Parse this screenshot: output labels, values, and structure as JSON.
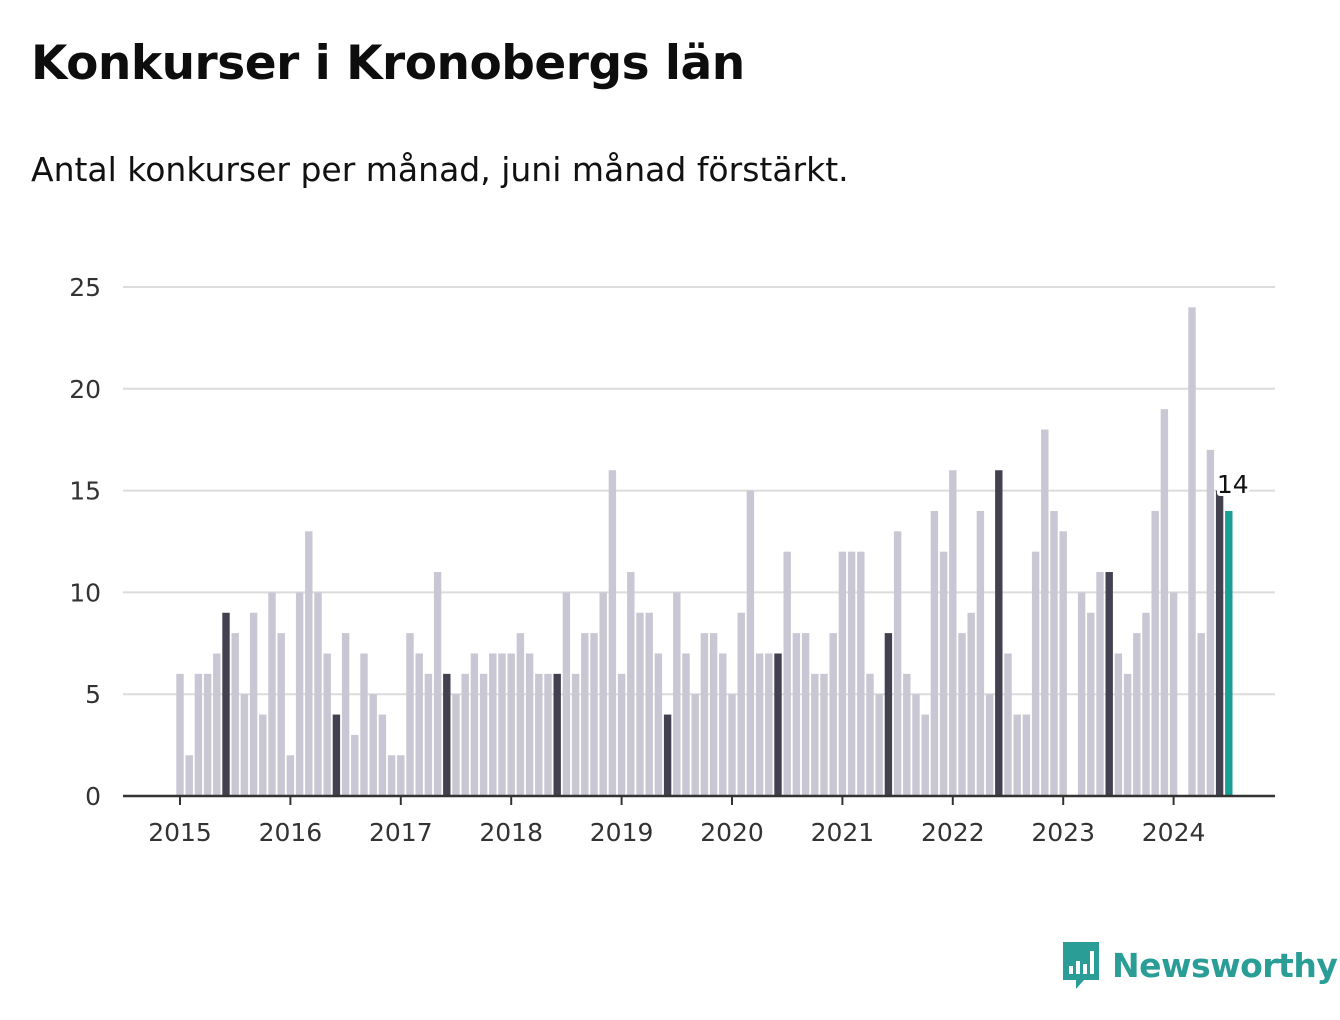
{
  "title": "Konkurser i Kronobergs län",
  "subtitle": "Antal konkurser per månad, juni månad förstärkt.",
  "brand": {
    "name": "Newsworthy",
    "logo_icon": "bar-chart-speech-bubble-icon"
  },
  "colors": {
    "bar": "#c8c7d3",
    "highlight": "#43414f",
    "latest": "#1a9e95",
    "grid": "#dcdcdc",
    "axis": "#333333"
  },
  "chart_data": {
    "type": "bar",
    "title": "Konkurser i Kronobergs län",
    "subtitle": "Antal konkurser per månad, juni månad förstärkt.",
    "xlabel": "",
    "ylabel": "",
    "ylim": [
      0,
      25
    ],
    "yticks": [
      0,
      5,
      10,
      15,
      20,
      25
    ],
    "year_ticks": [
      "2015",
      "2016",
      "2017",
      "2018",
      "2019",
      "2020",
      "2021",
      "2022",
      "2023",
      "2024"
    ],
    "highlight_month": "juni",
    "grid": true,
    "start_month": "2015-01",
    "values": [
      6,
      2,
      6,
      6,
      7,
      9,
      8,
      5,
      9,
      4,
      10,
      8,
      2,
      10,
      13,
      10,
      7,
      4,
      8,
      3,
      7,
      5,
      4,
      2,
      2,
      8,
      7,
      6,
      11,
      6,
      5,
      6,
      7,
      6,
      7,
      7,
      7,
      8,
      7,
      6,
      6,
      6,
      10,
      6,
      8,
      8,
      10,
      16,
      6,
      11,
      9,
      9,
      7,
      4,
      10,
      7,
      5,
      8,
      8,
      7,
      5,
      9,
      15,
      7,
      7,
      7,
      12,
      8,
      8,
      6,
      6,
      8,
      12,
      12,
      12,
      6,
      5,
      8,
      13,
      6,
      5,
      4,
      14,
      12,
      16,
      8,
      9,
      14,
      5,
      16,
      7,
      4,
      4,
      12,
      18,
      14,
      13,
      0,
      10,
      9,
      11,
      11,
      7,
      6,
      8,
      9,
      14,
      19,
      10,
      0,
      24,
      8,
      17,
      15,
      14
    ],
    "last_value_label": "14"
  }
}
